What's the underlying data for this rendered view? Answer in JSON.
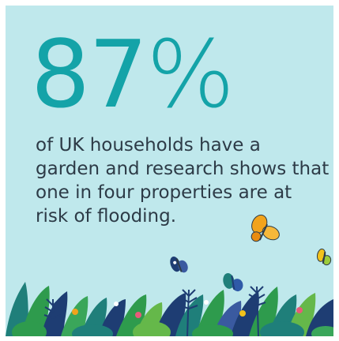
{
  "stat": {
    "number": "87",
    "symbol": "%"
  },
  "body_text": "of UK households have a garden and research shows that one in four properties are at risk of flooding.",
  "colors": {
    "background": "#bfe8ec",
    "stat": "#14a3a8",
    "text": "#2d3b47",
    "foliage_dark": "#1e3d73",
    "foliage_green": "#2e9b4d",
    "foliage_teal": "#1f7f7a",
    "butterfly_orange": "#f2a31b"
  },
  "icons": [
    "butterfly-icon",
    "butterfly-icon",
    "butterfly-icon",
    "butterfly-icon",
    "foliage-illustration"
  ]
}
